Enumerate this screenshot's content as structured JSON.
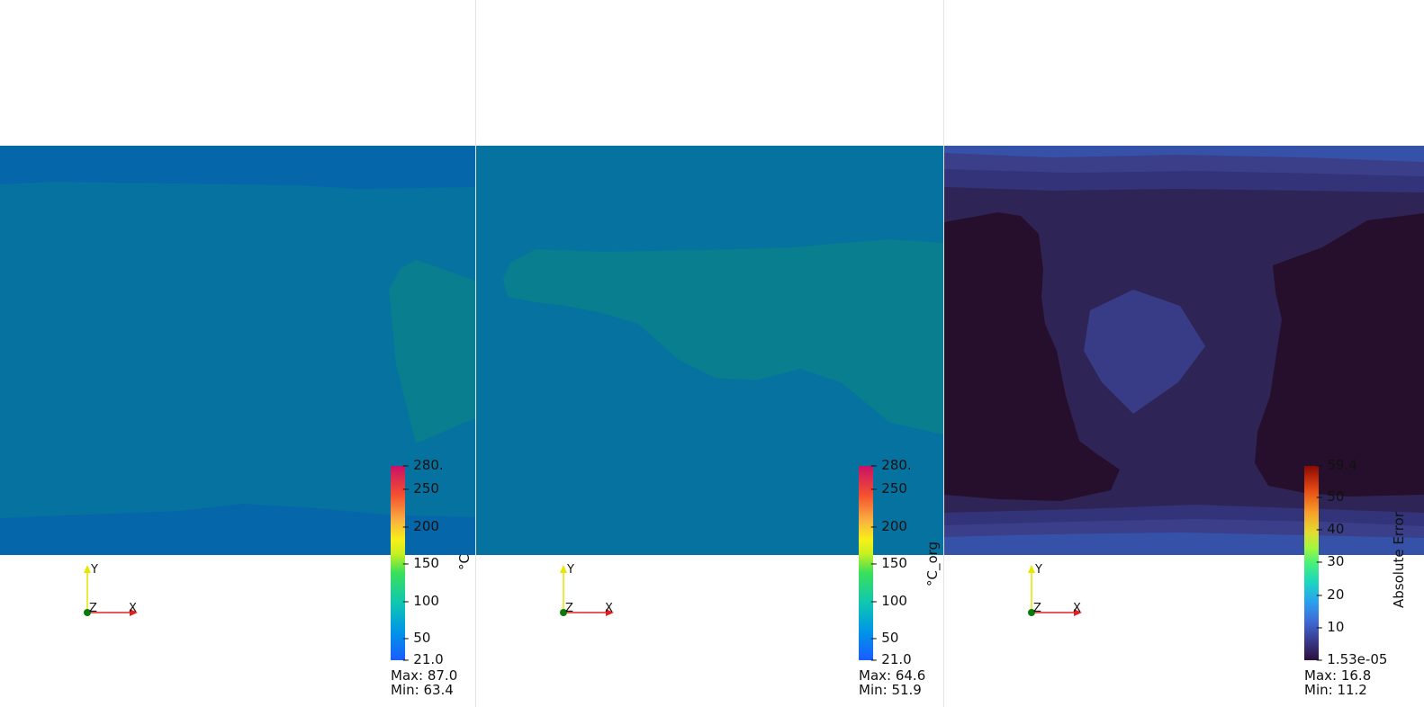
{
  "panes": [
    {
      "id": "predicted",
      "colorbar": {
        "title": "°C",
        "ticks": [
          "280.",
          "250",
          "200",
          "150",
          "100",
          "50",
          "21.0"
        ],
        "palette": "turbo-like"
      },
      "max_label": "Max: 87.0",
      "min_label": "Min: 63.4",
      "axes": {
        "y": "Y",
        "z": "Z",
        "x": "X"
      }
    },
    {
      "id": "original",
      "colorbar": {
        "title": "°C_org",
        "ticks": [
          "280.",
          "250",
          "200",
          "150",
          "100",
          "50",
          "21.0"
        ],
        "palette": "turbo-like"
      },
      "max_label": "Max: 64.6",
      "min_label": "Min: 51.9",
      "axes": {
        "y": "Y",
        "z": "Z",
        "x": "X"
      }
    },
    {
      "id": "error",
      "colorbar": {
        "title": "Absolute Error",
        "ticks": [
          "59.4",
          "50",
          "40",
          "30",
          "20",
          "10",
          "1.53e-05"
        ],
        "palette": "turbo-dark"
      },
      "max_label": "Max: 16.8",
      "min_label": "Min: 11.2",
      "axes": {
        "y": "Y",
        "z": "Z",
        "x": "X"
      }
    }
  ],
  "colors": {
    "field_blue": "#0566aa",
    "field_mid": "#0672a0",
    "field_teal": "#087e8e",
    "err_bg": "#2e2556",
    "err_dark": "#260f2c",
    "err_band": "#3b3f8a",
    "err_band2": "#3652a8"
  }
}
